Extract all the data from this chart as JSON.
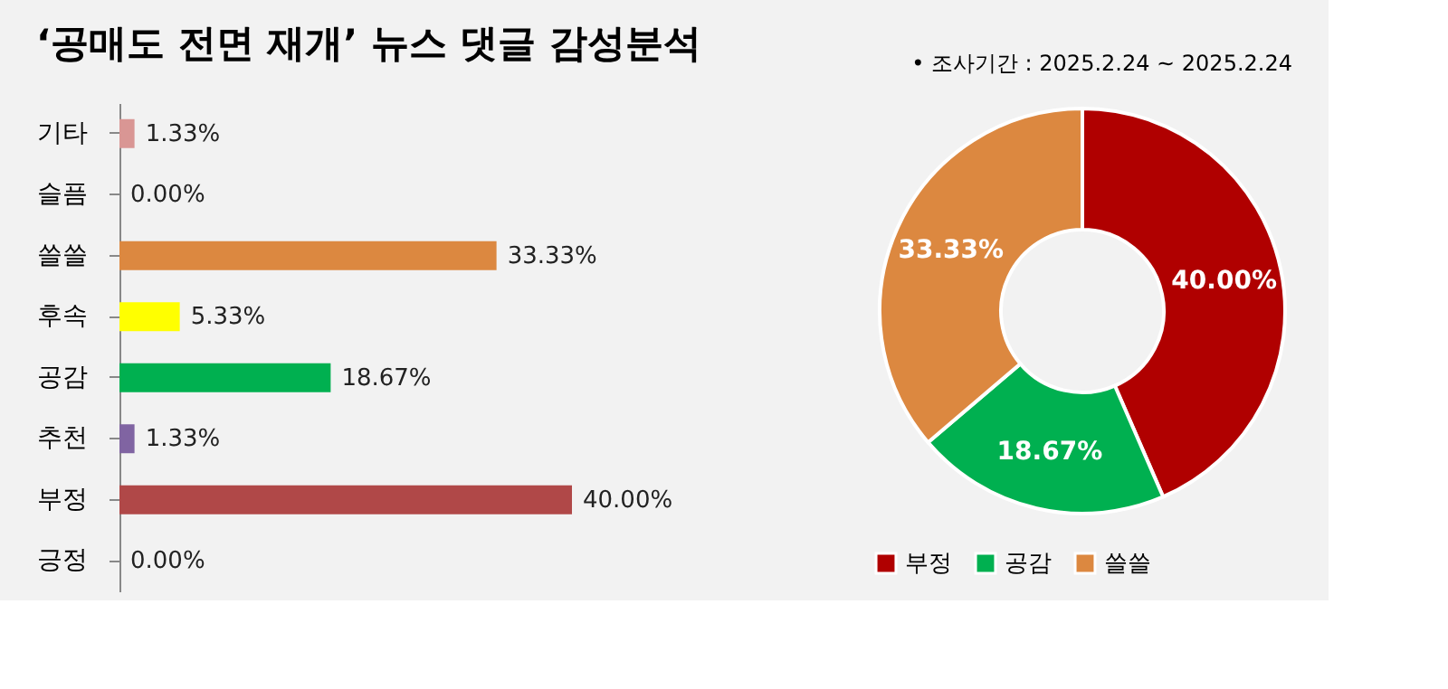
{
  "chart_data": [
    {
      "type": "bar",
      "title": "‘공매도 전면 재개’ 뉴스 댓글 감성분석",
      "orientation": "horizontal",
      "categories": [
        "기타",
        "슬픔",
        "쓸쓸",
        "후속",
        "공감",
        "추천",
        "부정",
        "긍정"
      ],
      "values": [
        1.33,
        0,
        33.33,
        5.33,
        18.67,
        1.33,
        40,
        0
      ],
      "colors": [
        "#d99694",
        "#d99694",
        "#dc8840",
        "#ffff00",
        "#00b050",
        "#8064a2",
        "#b04848",
        "#b04848"
      ],
      "value_labels": [
        "1.33%",
        "0.00%",
        "33.33%",
        "5.33%",
        "18.67%",
        "1.33%",
        "40.00%",
        "0.00%"
      ],
      "grid": false,
      "legend": false
    },
    {
      "type": "donut",
      "annotations": [
        "•   조사기간 : 2025.2.24 ~ 2025.2.24"
      ],
      "categories": [
        "부정",
        "공감",
        "쓸쓸"
      ],
      "values": [
        40,
        18.67,
        33.33
      ],
      "colors": [
        "#b00000",
        "#00b050",
        "#dc8840"
      ],
      "value_labels": [
        "40.00%",
        "18.67%",
        "33.33%"
      ],
      "legend": "bottom"
    }
  ]
}
